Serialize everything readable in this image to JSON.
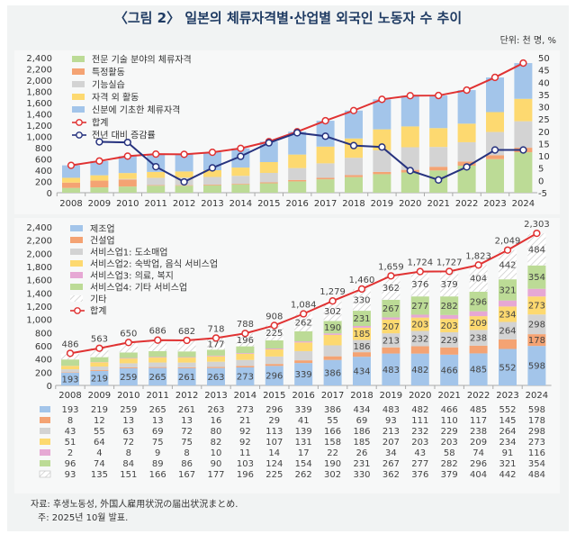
{
  "title": "〈그림 2〉 일본의 체류자격별·산업별 외국인 노동자 수 추이",
  "unit": "단위: 천 명, %",
  "source": "자료: 후생노동성, 外国人雇用状況の届出状況まとめ.",
  "note": "주: 2025년 10월 발표.",
  "colors": {
    "green": "#bcdb96",
    "orange": "#f4a373",
    "gray": "#d3d3d3",
    "yellow": "#fdd970",
    "blue": "#a3c5ea",
    "pink": "#e6a8d4",
    "other": "#ffffff",
    "red": "#e03232",
    "navy": "#27337f"
  },
  "chart_data": [
    {
      "type": "bar",
      "stacked": true,
      "categories": [
        "2008",
        "2009",
        "2010",
        "2011",
        "2012",
        "2013",
        "2014",
        "2015",
        "2016",
        "2017",
        "2018",
        "2019",
        "2020",
        "2021",
        "2022",
        "2023",
        "2024"
      ],
      "ylim": [
        0,
        2400
      ],
      "yticks": [
        "0",
        "200",
        "400",
        "600",
        "800",
        "1,000",
        "1,200",
        "1,400",
        "1,600",
        "1,800",
        "2,000",
        "2,200",
        "2,400"
      ],
      "y2lim": [
        -5,
        50
      ],
      "y2ticks": [
        "-5",
        "0",
        "5",
        "10",
        "15",
        "20",
        "25",
        "30",
        "35",
        "40",
        "45",
        "50"
      ],
      "legend_position": "top-left",
      "series": [
        {
          "name": "전문 기술 분야의 체류자격",
          "color": "green",
          "values": [
            85,
            95,
            110,
            125,
            124,
            132,
            147,
            167,
            201,
            238,
            277,
            329,
            360,
            395,
            480,
            596,
            719
          ]
        },
        {
          "name": "특정활동",
          "color": "orange",
          "values": [
            95,
            120,
            125,
            10,
            10,
            12,
            12,
            17,
            26,
            26,
            36,
            41,
            46,
            66,
            74,
            71,
            80
          ]
        },
        {
          "name": "기능실습",
          "color": "gray",
          "values": [
            0,
            0,
            10,
            130,
            136,
            136,
            141,
            168,
            211,
            258,
            308,
            384,
            402,
            352,
            343,
            412,
            471
          ]
        },
        {
          "name": "자격 외 활동",
          "color": "yellow",
          "values": [
            85,
            95,
            105,
            105,
            108,
            120,
            147,
            192,
            240,
            297,
            343,
            372,
            370,
            335,
            330,
            353,
            398
          ]
        },
        {
          "name": "신분에 기초한 체류자격",
          "color": "blue",
          "values": [
            221,
            253,
            300,
            316,
            304,
            318,
            341,
            364,
            406,
            460,
            496,
            533,
            546,
            579,
            596,
            617,
            635
          ]
        }
      ],
      "lines": [
        {
          "name": "합계",
          "color": "red",
          "axis": "left",
          "values": [
            486,
            563,
            650,
            686,
            682,
            718,
            788,
            908,
            1084,
            1279,
            1460,
            1659,
            1724,
            1727,
            1823,
            2049,
            2303
          ]
        },
        {
          "name": "전년 대비 증감률",
          "color": "navy",
          "axis": "right",
          "values": [
            null,
            15.7,
            15.5,
            5.6,
            -0.6,
            5.1,
            9.8,
            15.3,
            19.4,
            18.0,
            14.2,
            13.6,
            4.0,
            0.2,
            5.5,
            12.4,
            12.4
          ]
        }
      ]
    },
    {
      "type": "bar",
      "stacked": true,
      "categories": [
        "2008",
        "2009",
        "2010",
        "2011",
        "2012",
        "2013",
        "2014",
        "2015",
        "2016",
        "2017",
        "2018",
        "2019",
        "2020",
        "2021",
        "2022",
        "2023",
        "2024"
      ],
      "ylim": [
        0,
        2400
      ],
      "yticks": [
        "0",
        "200",
        "400",
        "600",
        "800",
        "1,000",
        "1,200",
        "1,400",
        "1,600",
        "1,800",
        "2,000",
        "2,200",
        "2,400"
      ],
      "legend_position": "top-left",
      "series": [
        {
          "name": "제조업",
          "color": "blue",
          "values": [
            193,
            219,
            259,
            265,
            261,
            263,
            273,
            296,
            339,
            386,
            434,
            483,
            482,
            466,
            485,
            552,
            598
          ]
        },
        {
          "name": "건설업",
          "color": "orange",
          "values": [
            8,
            12,
            13,
            13,
            13,
            16,
            21,
            29,
            41,
            55,
            69,
            93,
            111,
            110,
            117,
            145,
            178
          ]
        },
        {
          "name": "서비스업1: 도소매업",
          "color": "gray",
          "values": [
            43,
            55,
            63,
            69,
            72,
            80,
            92,
            113,
            139,
            166,
            186,
            213,
            232,
            229,
            238,
            264,
            298
          ]
        },
        {
          "name": "서비스업2: 숙박업, 음식 서비스업",
          "color": "yellow",
          "values": [
            51,
            64,
            72,
            75,
            75,
            82,
            92,
            107,
            131,
            158,
            185,
            207,
            203,
            203,
            209,
            234,
            273
          ]
        },
        {
          "name": "서비스업3: 의료, 복지",
          "color": "pink",
          "values": [
            2,
            4,
            8,
            9,
            8,
            10,
            11,
            14,
            17,
            22,
            26,
            34,
            43,
            58,
            74,
            91,
            116
          ]
        },
        {
          "name": "서비스업4: 기타 서비스업",
          "color": "green",
          "values": [
            96,
            74,
            84,
            89,
            86,
            90,
            103,
            124,
            154,
            190,
            231,
            267,
            277,
            282,
            296,
            321,
            354
          ]
        },
        {
          "name": "기타",
          "color": "other",
          "values": [
            93,
            135,
            151,
            166,
            167,
            177,
            196,
            225,
            262,
            302,
            330,
            362,
            376,
            379,
            404,
            442,
            484
          ]
        }
      ],
      "lines": [
        {
          "name": "합계",
          "color": "red",
          "values": [
            486,
            563,
            650,
            686,
            682,
            718,
            788,
            908,
            1084,
            1279,
            1460,
            1659,
            1724,
            1727,
            1823,
            2049,
            2303
          ],
          "labels": [
            "486",
            "563",
            "650",
            "686",
            "682",
            "718",
            "788",
            "908",
            "1,084",
            "1,279",
            "1,460",
            "1,659",
            "1,724",
            "1,727",
            "1,823",
            "2,049",
            "2,303"
          ]
        }
      ]
    }
  ]
}
